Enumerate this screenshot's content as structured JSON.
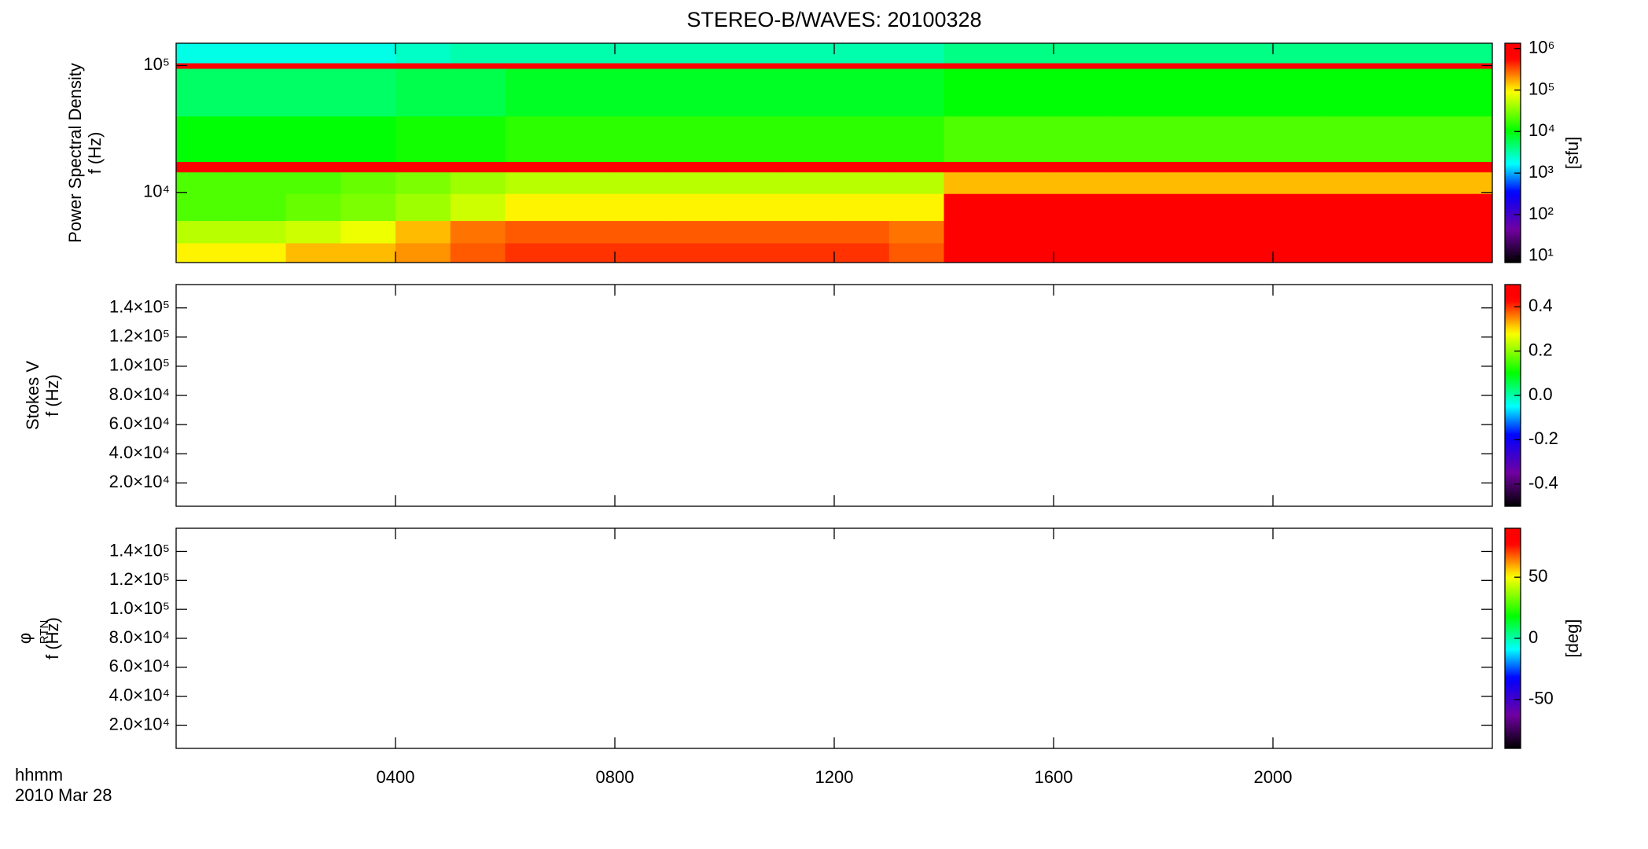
{
  "figure": {
    "title": "STEREO-B/WAVES: 20100328",
    "xlabel": [
      "hhmm",
      "2010 Mar 28"
    ],
    "xlim": [
      0,
      24
    ],
    "xticks": [
      {
        "value": 4,
        "label": "0400"
      },
      {
        "value": 8,
        "label": "0800"
      },
      {
        "value": 12,
        "label": "1200"
      },
      {
        "value": 16,
        "label": "1600"
      },
      {
        "value": 20,
        "label": "2000"
      }
    ]
  },
  "chart_data": [
    {
      "type": "heatmap",
      "ylabel": [
        "Power Spectral Density",
        "f (Hz)"
      ],
      "ylog": true,
      "ylim": [
        2800,
        150000
      ],
      "yticks": [
        {
          "value": 10000,
          "label": "10⁴"
        },
        {
          "value": 100000,
          "label": "10⁵"
        }
      ],
      "colormap": "rainbow",
      "clog": true,
      "clim": [
        7,
        1340000
      ],
      "clabel": "[sfu]",
      "cticks": [
        {
          "value": 10,
          "label": "10¹"
        },
        {
          "value": 100,
          "label": "10²"
        },
        {
          "value": 1000,
          "label": "10³"
        },
        {
          "value": 10000,
          "label": "10⁴"
        },
        {
          "value": 100000,
          "label": "10⁵"
        },
        {
          "value": 1000000,
          "label": "10⁶"
        }
      ],
      "x": [
        0,
        1,
        2,
        3,
        4,
        5,
        6,
        7,
        8,
        9,
        10,
        11,
        12,
        13,
        14,
        15,
        16,
        17,
        18,
        19,
        20,
        21,
        22,
        23,
        24
      ],
      "y": [
        2800,
        4000,
        6000,
        9800,
        14500,
        17500,
        40000,
        95000,
        105000,
        150000
      ],
      "z": [
        [
          100000,
          100000,
          150000,
          150000,
          200000,
          300000,
          400000,
          400000,
          400000,
          400000,
          400000,
          400000,
          400000,
          300000,
          1000000,
          1000000,
          1000000,
          1000000,
          1000000,
          1000000,
          1000000,
          1000000,
          1000000,
          1000000
        ],
        [
          50000,
          50000,
          60000,
          80000,
          150000,
          250000,
          300000,
          300000,
          300000,
          300000,
          300000,
          300000,
          300000,
          250000,
          1000000,
          1000000,
          1000000,
          1000000,
          1000000,
          1000000,
          1000000,
          1000000,
          1000000,
          1000000
        ],
        [
          20000,
          20000,
          25000,
          30000,
          40000,
          60000,
          100000,
          100000,
          100000,
          100000,
          100000,
          100000,
          100000,
          100000,
          800000,
          800000,
          800000,
          800000,
          800000,
          800000,
          800000,
          800000,
          800000,
          800000
        ],
        [
          20000,
          20000,
          20000,
          25000,
          30000,
          40000,
          50000,
          50000,
          50000,
          50000,
          50000,
          50000,
          50000,
          50000,
          150000,
          150000,
          150000,
          150000,
          150000,
          150000,
          150000,
          150000,
          150000,
          150000
        ],
        [
          1000000,
          1000000,
          1000000,
          1000000,
          1000000,
          1000000,
          1000000,
          1000000,
          1000000,
          1000000,
          1000000,
          1000000,
          1000000,
          1000000,
          1000000,
          1000000,
          1000000,
          1000000,
          1000000,
          1000000,
          1000000,
          1000000,
          1000000,
          1000000
        ],
        [
          10000,
          10000,
          10000,
          10000,
          12000,
          12000,
          15000,
          15000,
          15000,
          15000,
          15000,
          15000,
          15000,
          15000,
          20000,
          20000,
          20000,
          20000,
          20000,
          20000,
          20000,
          20000,
          20000,
          20000
        ],
        [
          5000,
          5000,
          5000,
          5000,
          6000,
          6000,
          8000,
          8000,
          8000,
          8000,
          8000,
          8000,
          8000,
          8000,
          10000,
          10000,
          10000,
          10000,
          10000,
          10000,
          10000,
          10000,
          10000,
          10000
        ],
        [
          800000,
          800000,
          800000,
          800000,
          800000,
          800000,
          800000,
          800000,
          800000,
          800000,
          800000,
          800000,
          800000,
          800000,
          800000,
          800000,
          800000,
          800000,
          800000,
          800000,
          800000,
          800000,
          800000,
          800000
        ],
        [
          2000,
          2000,
          2000,
          2000,
          2500,
          3000,
          3000,
          3000,
          3000,
          3000,
          3000,
          3000,
          3000,
          3000,
          4000,
          4000,
          4000,
          4000,
          4000,
          4000,
          4000,
          4000,
          4000,
          4000
        ]
      ]
    },
    {
      "type": "heatmap",
      "ylabel": [
        "Stokes V",
        "f (Hz)"
      ],
      "ylim": [
        4000,
        156000
      ],
      "yticks": [
        {
          "value": 20000,
          "label": "2.0×10⁴"
        },
        {
          "value": 40000,
          "label": "4.0×10⁴"
        },
        {
          "value": 60000,
          "label": "6.0×10⁴"
        },
        {
          "value": 80000,
          "label": "8.0×10⁴"
        },
        {
          "value": 100000,
          "label": "1.0×10⁵"
        },
        {
          "value": 120000,
          "label": "1.2×10⁵"
        },
        {
          "value": 140000,
          "label": "1.4×10⁵"
        }
      ],
      "colormap": "rainbow",
      "clim": [
        -0.5,
        0.5
      ],
      "cticks": [
        -0.4,
        -0.2,
        {
          "value": 0,
          "label": "0.0"
        },
        0.2,
        0.4
      ]
    },
    {
      "type": "heatmap",
      "ylabel": [
        "φ",
        "f (Hz)"
      ],
      "ylabel_sub": "RTN",
      "ylim": [
        4000,
        156000
      ],
      "yticks": [
        {
          "value": 20000,
          "label": "2.0×10⁴"
        },
        {
          "value": 40000,
          "label": "4.0×10⁴"
        },
        {
          "value": 60000,
          "label": "6.0×10⁴"
        },
        {
          "value": 80000,
          "label": "8.0×10⁴"
        },
        {
          "value": 100000,
          "label": "1.0×10⁵"
        },
        {
          "value": 120000,
          "label": "1.2×10⁵"
        },
        {
          "value": 140000,
          "label": "1.4×10⁵"
        }
      ],
      "colormap": "rainbow",
      "clim": [
        -90,
        90
      ],
      "clabel": "[deg]",
      "cticks": [
        -50,
        0,
        50
      ]
    }
  ]
}
